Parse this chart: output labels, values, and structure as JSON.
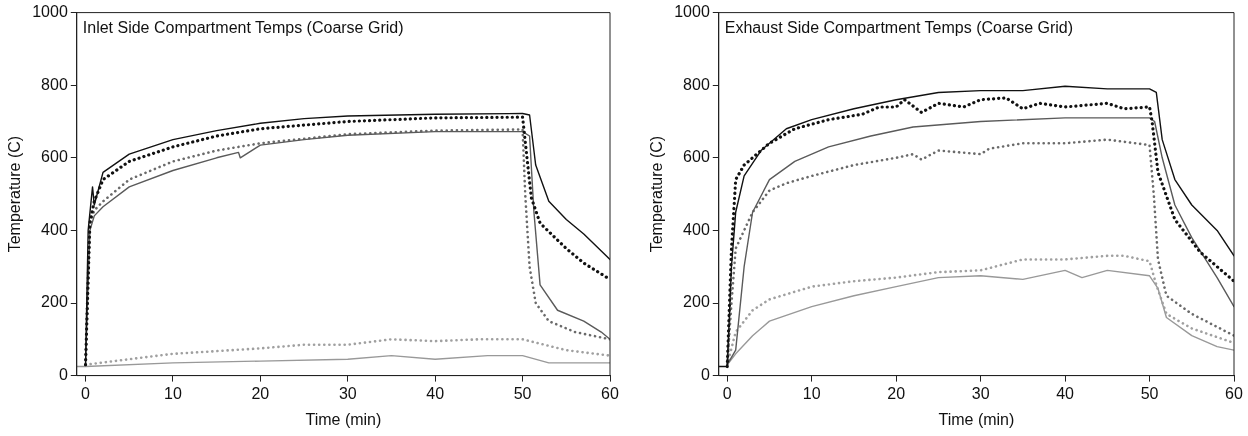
{
  "chart_data": [
    {
      "type": "line",
      "title": "Inlet Side Compartment Temps (Coarse Grid)",
      "xlabel": "Time (min)",
      "ylabel": "Temperature (C)",
      "xlim": [
        -1,
        60
      ],
      "ylim": [
        0,
        1000
      ],
      "xticks": [
        0,
        10,
        20,
        30,
        40,
        50,
        60
      ],
      "yticks": [
        0,
        200,
        400,
        600,
        800,
        1000
      ],
      "series": [
        {
          "color": "#111111",
          "line_style": "solid",
          "x": [
            0,
            0.3,
            0.8,
            1,
            2,
            5,
            10,
            15,
            20,
            25,
            30,
            40,
            50,
            50.8,
            51.5,
            53,
            55,
            57,
            60
          ],
          "values": [
            30,
            400,
            520,
            470,
            560,
            610,
            650,
            675,
            695,
            708,
            715,
            720,
            722,
            718,
            580,
            480,
            430,
            390,
            320
          ]
        },
        {
          "color": "#111111",
          "line_style": "dotted",
          "x": [
            0,
            0.5,
            1,
            2,
            5,
            10,
            15,
            20,
            30,
            40,
            50,
            50.5,
            51,
            52,
            55,
            57,
            60
          ],
          "values": [
            30,
            420,
            480,
            540,
            590,
            630,
            660,
            680,
            700,
            710,
            712,
            600,
            490,
            420,
            350,
            310,
            265
          ]
        },
        {
          "color": "#5a5a5a",
          "line_style": "solid",
          "x": [
            0,
            0.5,
            1,
            2,
            5,
            10,
            15,
            17.5,
            17.7,
            20,
            25,
            30,
            40,
            50,
            50.8,
            51.3,
            52,
            54,
            57,
            59,
            60
          ],
          "values": [
            30,
            400,
            440,
            465,
            520,
            565,
            600,
            615,
            600,
            635,
            650,
            662,
            672,
            672,
            660,
            450,
            250,
            180,
            150,
            120,
            100
          ]
        },
        {
          "color": "#6a6a6a",
          "line_style": "dotted",
          "x": [
            0,
            0.5,
            1,
            2,
            5,
            10,
            15,
            20,
            30,
            40,
            50,
            50.3,
            50.8,
            51.5,
            53,
            56,
            60
          ],
          "values": [
            30,
            420,
            455,
            480,
            540,
            590,
            620,
            640,
            665,
            675,
            678,
            500,
            300,
            200,
            150,
            120,
            100
          ]
        },
        {
          "color": "#a0a0a0",
          "line_style": "dotted",
          "x": [
            0,
            5,
            10,
            20,
            25,
            30,
            35,
            40,
            45,
            50,
            55,
            60
          ],
          "values": [
            30,
            45,
            60,
            75,
            85,
            85,
            100,
            95,
            100,
            100,
            70,
            55
          ]
        },
        {
          "color": "#999999",
          "line_style": "solid",
          "x": [
            -1,
            0,
            10,
            20,
            30,
            35,
            40,
            46,
            50,
            53,
            60
          ],
          "values": [
            25,
            25,
            35,
            40,
            45,
            55,
            45,
            55,
            55,
            35,
            35
          ]
        }
      ]
    },
    {
      "type": "line",
      "title": "Exhaust Side Compartment Temps (Coarse Grid)",
      "xlabel": "Time (min)",
      "ylabel": "Temperature (C)",
      "xlim": [
        -1,
        60
      ],
      "ylim": [
        0,
        1000
      ],
      "xticks": [
        0,
        10,
        20,
        30,
        40,
        50,
        60
      ],
      "yticks": [
        0,
        200,
        400,
        600,
        800,
        1000
      ],
      "series": [
        {
          "color": "#111111",
          "line_style": "solid",
          "x": [
            -1,
            0,
            0.5,
            1,
            2,
            4,
            7,
            10,
            15,
            20,
            25,
            30,
            35,
            40,
            45,
            50,
            50.8,
            51.5,
            53,
            55,
            58,
            60
          ],
          "values": [
            25,
            25,
            300,
            450,
            550,
            620,
            680,
            705,
            735,
            760,
            780,
            785,
            785,
            797,
            790,
            790,
            780,
            650,
            540,
            470,
            400,
            330
          ]
        },
        {
          "color": "#111111",
          "line_style": "dotted",
          "x": [
            0,
            0.5,
            1,
            2,
            5,
            8,
            12,
            16,
            18,
            20,
            21,
            23,
            25,
            28,
            30,
            33,
            35,
            37,
            40,
            45,
            47,
            50,
            50.3,
            51,
            53,
            56,
            60
          ],
          "values": [
            25,
            350,
            540,
            580,
            640,
            680,
            705,
            720,
            740,
            740,
            760,
            725,
            750,
            740,
            760,
            765,
            735,
            750,
            740,
            750,
            735,
            740,
            700,
            560,
            430,
            340,
            260
          ]
        },
        {
          "color": "#5a5a5a",
          "line_style": "solid",
          "x": [
            0,
            1,
            2,
            3,
            5,
            8,
            12,
            17,
            22,
            30,
            40,
            50,
            50.6,
            51.5,
            53,
            55,
            58,
            60
          ],
          "values": [
            30,
            70,
            300,
            450,
            540,
            590,
            630,
            660,
            685,
            700,
            710,
            710,
            700,
            600,
            470,
            380,
            270,
            190
          ]
        },
        {
          "color": "#6a6a6a",
          "line_style": "dotted",
          "x": [
            0,
            0.5,
            1,
            3,
            5,
            7,
            10,
            15,
            20,
            22,
            23,
            25,
            30,
            31,
            35,
            40,
            45,
            50,
            50.5,
            51,
            52,
            55,
            60
          ],
          "values": [
            30,
            200,
            350,
            450,
            510,
            530,
            550,
            580,
            600,
            610,
            595,
            620,
            610,
            625,
            640,
            640,
            650,
            635,
            500,
            320,
            220,
            170,
            110
          ]
        },
        {
          "color": "#a0a0a0",
          "line_style": "dotted",
          "x": [
            0,
            1,
            3,
            5,
            10,
            15,
            20,
            25,
            30,
            35,
            40,
            45,
            47,
            50,
            50.8,
            52,
            55,
            60
          ],
          "values": [
            30,
            120,
            180,
            210,
            245,
            260,
            270,
            285,
            290,
            320,
            320,
            330,
            330,
            315,
            250,
            170,
            130,
            90
          ]
        },
        {
          "color": "#999999",
          "line_style": "solid",
          "x": [
            0,
            1,
            3,
            5,
            10,
            15,
            20,
            25,
            30,
            35,
            40,
            42,
            45,
            50,
            51,
            52,
            55,
            58,
            60
          ],
          "values": [
            30,
            60,
            110,
            150,
            190,
            220,
            245,
            270,
            275,
            265,
            290,
            270,
            290,
            275,
            240,
            160,
            110,
            80,
            70
          ]
        }
      ]
    }
  ]
}
